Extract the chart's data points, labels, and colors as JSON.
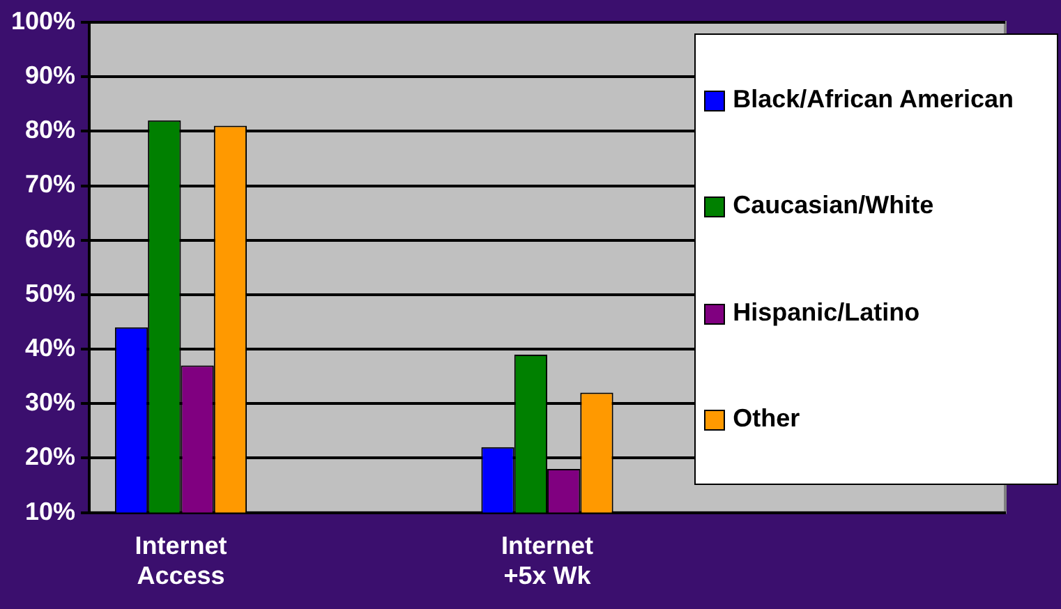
{
  "chart_data": {
    "type": "bar",
    "categories": [
      "Internet Access",
      null,
      "Internet +5x Wk",
      null,
      null
    ],
    "series": [
      {
        "name": "Black/African American",
        "color": "#0000ff",
        "values": [
          44,
          null,
          22,
          null,
          null
        ]
      },
      {
        "name": "Caucasian/White",
        "color": "#008000",
        "values": [
          82,
          null,
          39,
          null,
          null
        ]
      },
      {
        "name": "Hispanic/Latino",
        "color": "#800080",
        "values": [
          37,
          null,
          18,
          null,
          null
        ]
      },
      {
        "name": "Other",
        "color": "#ff9900",
        "values": [
          81,
          null,
          32,
          null,
          null
        ]
      }
    ],
    "ylim": [
      10,
      100
    ],
    "yticks": [
      {
        "value": 10,
        "label": "10%"
      },
      {
        "value": 20,
        "label": "20%"
      },
      {
        "value": 30,
        "label": "30%"
      },
      {
        "value": 40,
        "label": "40%"
      },
      {
        "value": 50,
        "label": "50%"
      },
      {
        "value": 60,
        "label": "60%"
      },
      {
        "value": 70,
        "label": "70%"
      },
      {
        "value": 80,
        "label": "80%"
      },
      {
        "value": 90,
        "label": "90%"
      },
      {
        "value": 100,
        "label": "100%"
      }
    ],
    "grid": "y",
    "legend": "top right"
  }
}
